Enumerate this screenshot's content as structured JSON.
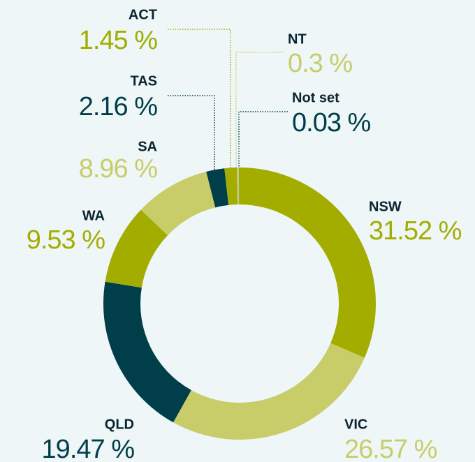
{
  "chart_data": {
    "type": "donut",
    "categories": [
      "NSW",
      "VIC",
      "QLD",
      "WA",
      "SA",
      "TAS",
      "ACT",
      "NT",
      "Not set"
    ],
    "values": [
      31.52,
      26.57,
      19.47,
      9.53,
      8.96,
      2.16,
      1.45,
      0.3,
      0.03
    ],
    "value_labels": [
      "31.52 %",
      "26.57 %",
      "19.47 %",
      "9.53 %",
      "8.96 %",
      "2.16 %",
      "1.45 %",
      "0.3 %",
      "0.03 %"
    ],
    "colors": [
      "#a3ad00",
      "#c8cd6a",
      "#003f4a",
      "#a3ad00",
      "#c8cd6a",
      "#003f4a",
      "#a3ad00",
      "#c8cd6a",
      "#003f4a"
    ]
  }
}
